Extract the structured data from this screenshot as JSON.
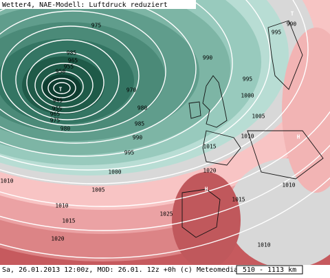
{
  "header": {
    "title": "Wetter4, NAE-Modell: Luftdruck reduziert"
  },
  "footer": {
    "text": "Sa, 26.01.2013 12:00z, MOD: 26.01. 12z +0h (c) Meteomedia",
    "scale": "510 - 1113 km"
  },
  "pressure_centers": [
    "T",
    "H",
    "H",
    "T"
  ],
  "isobar_labels": [
    975,
    985,
    965,
    955,
    950,
    945,
    955,
    965,
    975,
    980,
    970,
    980,
    985,
    990,
    995,
    1000,
    1005,
    1010,
    1015,
    1020,
    1025,
    1010,
    1015,
    1020,
    1015,
    1010,
    1005,
    1000,
    995,
    990,
    995,
    990,
    1010,
    1010
  ]
}
